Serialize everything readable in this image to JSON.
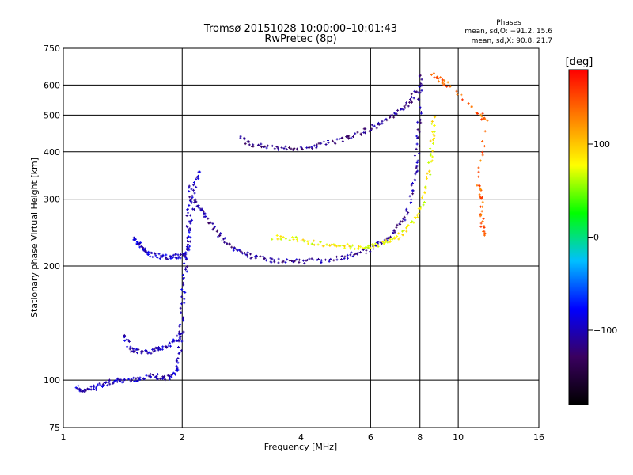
{
  "chart_data": {
    "type": "scatter",
    "title": "Tromsø 20151028 10:00:00–10:01:43",
    "subtitle": "RwPretec (8p)",
    "xlabel": "Frequency [MHz]",
    "ylabel": "Stationary phase Virtual Height [km]",
    "x_scale": "log",
    "y_scale": "log",
    "xlim": [
      1,
      16
    ],
    "ylim": [
      75,
      750
    ],
    "x_ticks": [
      "1",
      "2",
      "4",
      "6",
      "8",
      "10",
      "16"
    ],
    "y_ticks": [
      "75",
      "100",
      "200",
      "300",
      "400",
      "500",
      "600",
      "750"
    ],
    "grid": true,
    "legend_title": "Phases",
    "legend_lines": [
      "mean, sd,O: −91.2, 15.6",
      "mean, sd,X: 90.8, 21.7"
    ],
    "colorbar": {
      "label": "[deg]",
      "range": [
        -180,
        180
      ],
      "ticks": [
        "100",
        "0",
        "−100"
      ],
      "colors": [
        "#000000",
        "#3a0060",
        "#0000ff",
        "#00bfff",
        "#00ff00",
        "#ffff00",
        "#ff8000",
        "#ff0000"
      ]
    },
    "traces": [
      {
        "name": "",
        "phase": -100,
        "points": [
          [
            1.08,
            96
          ],
          [
            1.12,
            94
          ],
          [
            1.18,
            95
          ],
          [
            1.25,
            97
          ],
          [
            1.32,
            99
          ],
          [
            1.4,
            100
          ],
          [
            1.5,
            100
          ],
          [
            1.6,
            101
          ],
          [
            1.7,
            103
          ],
          [
            1.8,
            101
          ],
          [
            1.9,
            102
          ],
          [
            1.95,
            108
          ],
          [
            1.98,
            125
          ],
          [
            2.0,
            150
          ],
          [
            2.02,
            180
          ],
          [
            2.04,
            205
          ],
          [
            2.06,
            240
          ],
          [
            2.08,
            280
          ],
          [
            2.1,
            330
          ]
        ]
      },
      {
        "name": "",
        "phase": -100,
        "points": [
          [
            1.42,
            132
          ],
          [
            1.48,
            120
          ],
          [
            1.55,
            119
          ],
          [
            1.65,
            119
          ],
          [
            1.75,
            121
          ],
          [
            1.85,
            124
          ],
          [
            1.95,
            128
          ],
          [
            2.0,
            135
          ]
        ]
      },
      {
        "name": "",
        "phase": -95,
        "points": [
          [
            1.5,
            238
          ],
          [
            1.55,
            228
          ],
          [
            1.6,
            222
          ],
          [
            1.65,
            215
          ],
          [
            1.75,
            212
          ],
          [
            1.85,
            211
          ],
          [
            1.95,
            212
          ],
          [
            2.05,
            213
          ],
          [
            2.1,
            250
          ],
          [
            2.15,
            320
          ],
          [
            2.2,
            360
          ]
        ]
      },
      {
        "name": "",
        "phase": -110,
        "points": [
          [
            2.1,
            300
          ],
          [
            2.2,
            290
          ],
          [
            2.3,
            270
          ],
          [
            2.45,
            245
          ],
          [
            2.6,
            230
          ],
          [
            2.8,
            218
          ],
          [
            3.0,
            212
          ],
          [
            3.3,
            208
          ],
          [
            3.6,
            206
          ],
          [
            4.0,
            205
          ],
          [
            4.5,
            207
          ],
          [
            5.0,
            210
          ],
          [
            5.5,
            215
          ],
          [
            6.0,
            222
          ],
          [
            6.5,
            232
          ],
          [
            7.0,
            250
          ],
          [
            7.4,
            275
          ],
          [
            7.7,
            320
          ],
          [
            7.85,
            380
          ],
          [
            7.95,
            460
          ],
          [
            8.0,
            560
          ],
          [
            8.02,
            640
          ]
        ]
      },
      {
        "name": "",
        "phase": 80,
        "points": [
          [
            3.4,
            238
          ],
          [
            3.8,
            236
          ],
          [
            4.2,
            232
          ],
          [
            4.6,
            228
          ],
          [
            5.0,
            226
          ],
          [
            5.5,
            225
          ],
          [
            6.0,
            226
          ],
          [
            6.5,
            230
          ],
          [
            7.0,
            238
          ],
          [
            7.5,
            255
          ],
          [
            8.0,
            280
          ],
          [
            8.3,
            320
          ],
          [
            8.5,
            380
          ],
          [
            8.6,
            440
          ],
          [
            8.7,
            500
          ]
        ]
      },
      {
        "name": "",
        "phase": -115,
        "points": [
          [
            2.8,
            438
          ],
          [
            3.0,
            418
          ],
          [
            3.3,
            410
          ],
          [
            3.7,
            408
          ],
          [
            4.1,
            410
          ],
          [
            4.5,
            418
          ],
          [
            5.0,
            428
          ],
          [
            5.5,
            443
          ],
          [
            6.0,
            462
          ],
          [
            6.5,
            480
          ],
          [
            7.0,
            505
          ],
          [
            7.5,
            540
          ],
          [
            7.8,
            580
          ]
        ]
      },
      {
        "name": "",
        "phase": 140,
        "points": [
          [
            8.6,
            640
          ],
          [
            9.0,
            620
          ],
          [
            9.4,
            600
          ],
          [
            11.2,
            510
          ],
          [
            11.8,
            480
          ],
          [
            11.2,
            330
          ],
          [
            11.5,
            300
          ],
          [
            11.5,
            260
          ],
          [
            11.8,
            240
          ]
        ]
      }
    ]
  }
}
